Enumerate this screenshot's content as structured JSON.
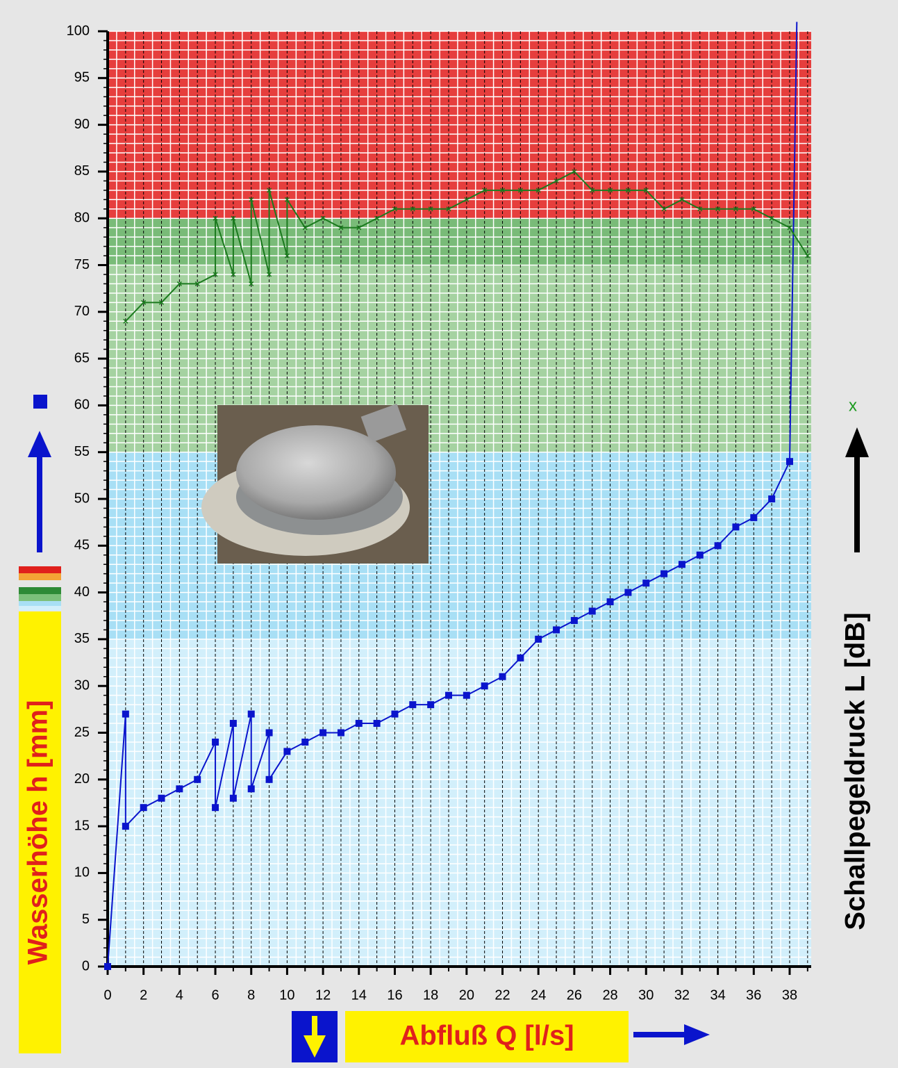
{
  "chart_data": {
    "type": "line",
    "x_label": "Abfluß Q [l/s]",
    "y_label": "Wasserhöhe h [mm]",
    "y2_label": "Schallpegeldruck L [dB]",
    "annotations": [
      "x"
    ],
    "xlim": [
      0,
      39.2
    ],
    "ylim": [
      0,
      100
    ],
    "xticks": [
      0,
      2,
      4,
      6,
      8,
      10,
      12,
      14,
      16,
      18,
      20,
      22,
      24,
      26,
      28,
      30,
      32,
      34,
      36,
      38
    ],
    "yticks": [
      0,
      5,
      10,
      15,
      20,
      25,
      30,
      35,
      40,
      45,
      50,
      55,
      60,
      65,
      70,
      75,
      80,
      85,
      90,
      95,
      100
    ],
    "xminorticks": [
      0,
      0.5,
      1,
      1.5,
      2,
      2.5,
      3,
      3.5,
      4,
      4.5,
      5,
      5.5,
      6,
      6.5,
      7,
      7.5,
      8,
      8.5,
      9,
      9.5,
      10,
      10.5,
      11,
      11.5,
      12,
      12.5,
      13,
      13.5,
      14,
      14.5,
      15,
      15.5,
      16,
      16.5,
      17,
      17.5,
      18,
      18.5,
      19,
      19.5,
      20,
      20.5,
      21,
      21.5,
      22,
      22.5,
      23,
      23.5,
      24,
      24.5,
      25,
      25.5,
      26,
      26.5,
      27,
      27.5,
      28,
      28.5,
      29,
      29.5,
      30,
      30.5,
      31,
      31.5,
      32,
      32.5,
      33,
      33.5,
      34,
      34.5,
      35,
      35.5,
      36,
      36.5,
      37,
      37.5,
      38,
      38.5,
      39
    ],
    "yminorticks": [
      0,
      1,
      2,
      3,
      4,
      5,
      6,
      7,
      8,
      9,
      10,
      11,
      12,
      13,
      14,
      15,
      16,
      17,
      18,
      19,
      20,
      21,
      22,
      23,
      24,
      25,
      26,
      27,
      28,
      29,
      30,
      31,
      32,
      33,
      34,
      35,
      36,
      37,
      38,
      39,
      40,
      41,
      42,
      43,
      44,
      45,
      46,
      47,
      48,
      49,
      50,
      51,
      52,
      53,
      54,
      55,
      56,
      57,
      58,
      59,
      60,
      61,
      62,
      63,
      64,
      65,
      66,
      67,
      68,
      69,
      70,
      71,
      72,
      73,
      74,
      75,
      76,
      77,
      78,
      79,
      80,
      81,
      82,
      83,
      84,
      85,
      86,
      87,
      88,
      89,
      90,
      91,
      92,
      93,
      94,
      95,
      96,
      97,
      98,
      99,
      100
    ],
    "grid": true,
    "bands": [
      {
        "from": 0,
        "to": 35,
        "color": "#d2effb"
      },
      {
        "from": 35,
        "to": 55,
        "color": "#a8dff5"
      },
      {
        "from": 55,
        "to": 75,
        "color": "#a5d2a1"
      },
      {
        "from": 75,
        "to": 80,
        "color": "#79bb78"
      },
      {
        "from": 80,
        "to": 100,
        "color": "#e63e3d"
      }
    ],
    "series": [
      {
        "color": "#0a14cc",
        "marker": "square",
        "x": [
          0,
          1,
          1,
          2,
          3,
          4,
          5,
          6,
          6,
          7,
          7,
          8,
          8,
          9,
          9,
          10,
          11,
          12,
          13,
          14,
          15,
          16,
          17,
          18,
          19,
          20,
          21,
          22,
          23,
          24,
          25,
          26,
          27,
          28,
          29,
          30,
          31,
          32,
          33,
          34,
          35,
          36,
          37,
          38,
          38.4
        ],
        "values": [
          0,
          27,
          15,
          17,
          18,
          19,
          20,
          24,
          17,
          26,
          18,
          27,
          19,
          25,
          20,
          23,
          24,
          25,
          25,
          26,
          26,
          27,
          28,
          28,
          29,
          29,
          30,
          31,
          33,
          35,
          36,
          37,
          38,
          39,
          40,
          41,
          42,
          43,
          44,
          45,
          47,
          48,
          50,
          54,
          101
        ]
      },
      {
        "color": "#1b7a1e",
        "marker": "cross",
        "x": [
          1,
          2,
          3,
          4,
          5,
          6,
          6,
          7,
          7,
          8,
          8,
          9,
          9,
          10,
          10,
          11,
          12,
          13,
          14,
          15,
          16,
          17,
          18,
          19,
          20,
          21,
          22,
          23,
          24,
          25,
          26,
          27,
          28,
          29,
          30,
          31,
          32,
          33,
          34,
          35,
          36,
          37,
          38,
          39
        ],
        "values": [
          69,
          71,
          71,
          73,
          73,
          74,
          80,
          74,
          80,
          73,
          82,
          74,
          83,
          76,
          82,
          79,
          80,
          79,
          79,
          80,
          81,
          81,
          81,
          81,
          82,
          83,
          83,
          83,
          83,
          84,
          85,
          83,
          83,
          83,
          83,
          81,
          82,
          81,
          81,
          81,
          81,
          80,
          79,
          76
        ]
      }
    ]
  }
}
